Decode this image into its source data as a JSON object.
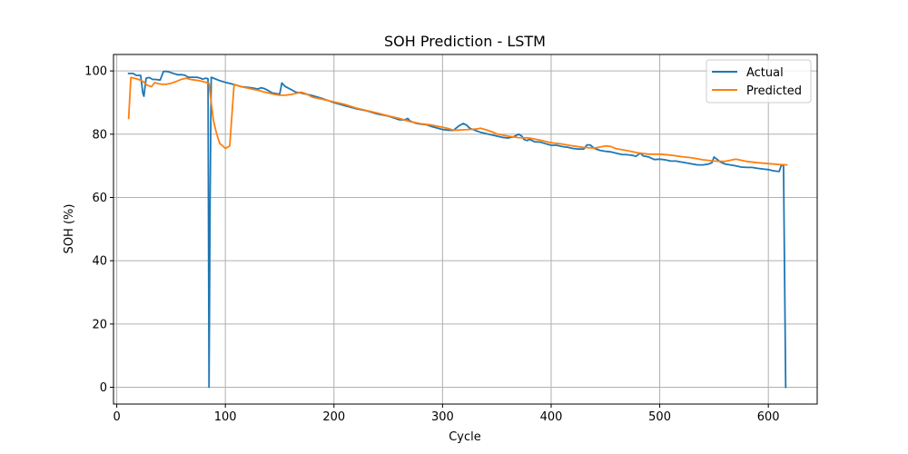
{
  "chart_data": {
    "type": "line",
    "title": "SOH Prediction - LSTM",
    "xlabel": "Cycle",
    "ylabel": "SOH (%)",
    "xlim": [
      -3,
      645
    ],
    "ylim": [
      -5.3,
      105.2
    ],
    "xticks": [
      0,
      100,
      200,
      300,
      400,
      500,
      600
    ],
    "yticks": [
      0,
      20,
      40,
      60,
      80,
      100
    ],
    "xtick_labels": [
      "0",
      "100",
      "200",
      "300",
      "400",
      "500",
      "600"
    ],
    "ytick_labels": [
      "0",
      "20",
      "40",
      "60",
      "80",
      "100"
    ],
    "grid": true,
    "legend_position": "top-right",
    "series": [
      {
        "name": "Actual",
        "color": "#1f77b4",
        "x": [
          11,
          15,
          18,
          20,
          22,
          24,
          25,
          27,
          30,
          33,
          36,
          40,
          43,
          45,
          48,
          52,
          56,
          60,
          63,
          66,
          70,
          74,
          77,
          79,
          82,
          84,
          85,
          86,
          87,
          90,
          95,
          100,
          105,
          110,
          115,
          120,
          125,
          130,
          133,
          136,
          140,
          143,
          146,
          150,
          152,
          155,
          160,
          165,
          170,
          180,
          190,
          200,
          210,
          220,
          230,
          240,
          250,
          260,
          265,
          268,
          270,
          275,
          280,
          285,
          290,
          300,
          305,
          310,
          315,
          319,
          322,
          325,
          330,
          335,
          340,
          345,
          350,
          355,
          360,
          365,
          370,
          373,
          375,
          378,
          380,
          385,
          390,
          395,
          400,
          405,
          410,
          415,
          420,
          425,
          430,
          433,
          436,
          438,
          440,
          445,
          450,
          455,
          460,
          465,
          470,
          475,
          478,
          482,
          485,
          490,
          495,
          500,
          505,
          510,
          515,
          520,
          525,
          530,
          535,
          540,
          545,
          548,
          550,
          553,
          556,
          560,
          565,
          570,
          575,
          580,
          585,
          590,
          595,
          600,
          605,
          610,
          612,
          614,
          616
        ],
        "y": [
          99.2,
          99.2,
          98.6,
          98.6,
          98.6,
          93.0,
          92.0,
          97.7,
          97.9,
          97.3,
          97.3,
          97.1,
          99.8,
          99.9,
          99.7,
          99.2,
          98.8,
          98.8,
          98.6,
          98.0,
          98.0,
          98.0,
          97.7,
          97.4,
          97.7,
          97.5,
          0.0,
          60.0,
          98.0,
          97.6,
          96.9,
          96.4,
          96.0,
          95.5,
          95.0,
          94.8,
          94.6,
          94.3,
          94.7,
          94.4,
          93.7,
          93.1,
          92.9,
          92.6,
          96.2,
          95.1,
          94.2,
          93.3,
          93.0,
          92.2,
          91.2,
          90.0,
          89.0,
          88.1,
          87.4,
          86.4,
          85.7,
          84.6,
          84.5,
          85.0,
          84.2,
          83.5,
          83.2,
          83.0,
          82.4,
          81.5,
          81.3,
          81.2,
          82.6,
          83.4,
          82.9,
          81.9,
          81.2,
          80.6,
          80.2,
          79.8,
          79.4,
          79.0,
          78.8,
          79.1,
          80.0,
          79.4,
          78.3,
          78.0,
          78.4,
          77.6,
          77.5,
          77.0,
          76.5,
          76.5,
          76.1,
          75.9,
          75.5,
          75.3,
          75.3,
          76.6,
          76.6,
          76.0,
          75.5,
          74.9,
          74.6,
          74.4,
          74.0,
          73.6,
          73.5,
          73.3,
          73.0,
          74.0,
          73.1,
          72.8,
          72.0,
          72.1,
          71.9,
          71.5,
          71.5,
          71.2,
          70.9,
          70.6,
          70.3,
          70.3,
          70.6,
          71.0,
          72.8,
          72.0,
          71.2,
          70.6,
          70.3,
          70.0,
          69.6,
          69.5,
          69.5,
          69.2,
          69.0,
          68.8,
          68.4,
          68.2,
          70.2,
          70.1,
          0.0
        ]
      },
      {
        "name": "Predicted",
        "color": "#ff7f0e",
        "x": [
          11,
          13,
          16,
          20,
          24,
          28,
          32,
          35,
          38,
          42,
          46,
          50,
          55,
          60,
          64,
          68,
          72,
          76,
          80,
          83,
          85,
          87,
          89,
          91,
          93,
          95,
          97,
          100,
          104,
          106,
          108,
          112,
          116,
          120,
          125,
          130,
          135,
          140,
          145,
          150,
          155,
          160,
          165,
          170,
          175,
          180,
          190,
          200,
          210,
          220,
          230,
          240,
          250,
          260,
          270,
          280,
          290,
          300,
          305,
          310,
          315,
          320,
          325,
          330,
          335,
          340,
          345,
          350,
          360,
          370,
          380,
          390,
          400,
          410,
          420,
          430,
          440,
          450,
          455,
          460,
          470,
          480,
          490,
          500,
          510,
          520,
          530,
          540,
          550,
          560,
          570,
          580,
          590,
          600,
          610,
          617
        ],
        "y": [
          85.0,
          97.9,
          97.7,
          97.3,
          96.7,
          95.5,
          95.0,
          96.3,
          96.0,
          95.8,
          95.8,
          96.1,
          96.7,
          97.4,
          97.7,
          97.3,
          97.1,
          96.9,
          96.6,
          96.3,
          96.1,
          90.0,
          84.5,
          81.5,
          79.0,
          77.0,
          76.5,
          75.5,
          76.3,
          86.0,
          95.8,
          95.3,
          94.9,
          94.6,
          94.2,
          93.9,
          93.4,
          93.0,
          92.6,
          92.3,
          92.3,
          92.5,
          92.9,
          93.3,
          92.7,
          91.7,
          91.0,
          90.2,
          89.4,
          88.3,
          87.5,
          86.7,
          85.8,
          85.0,
          84.0,
          83.3,
          82.9,
          82.2,
          81.8,
          81.3,
          81.3,
          81.4,
          81.5,
          81.6,
          81.9,
          81.4,
          80.8,
          80.1,
          79.4,
          78.9,
          78.8,
          78.1,
          77.3,
          76.9,
          76.3,
          75.8,
          75.6,
          76.3,
          76.1,
          75.4,
          74.8,
          74.1,
          73.7,
          73.7,
          73.4,
          72.9,
          72.5,
          71.9,
          71.5,
          71.4,
          72.1,
          71.4,
          71.0,
          70.7,
          70.4,
          70.3
        ]
      }
    ]
  }
}
